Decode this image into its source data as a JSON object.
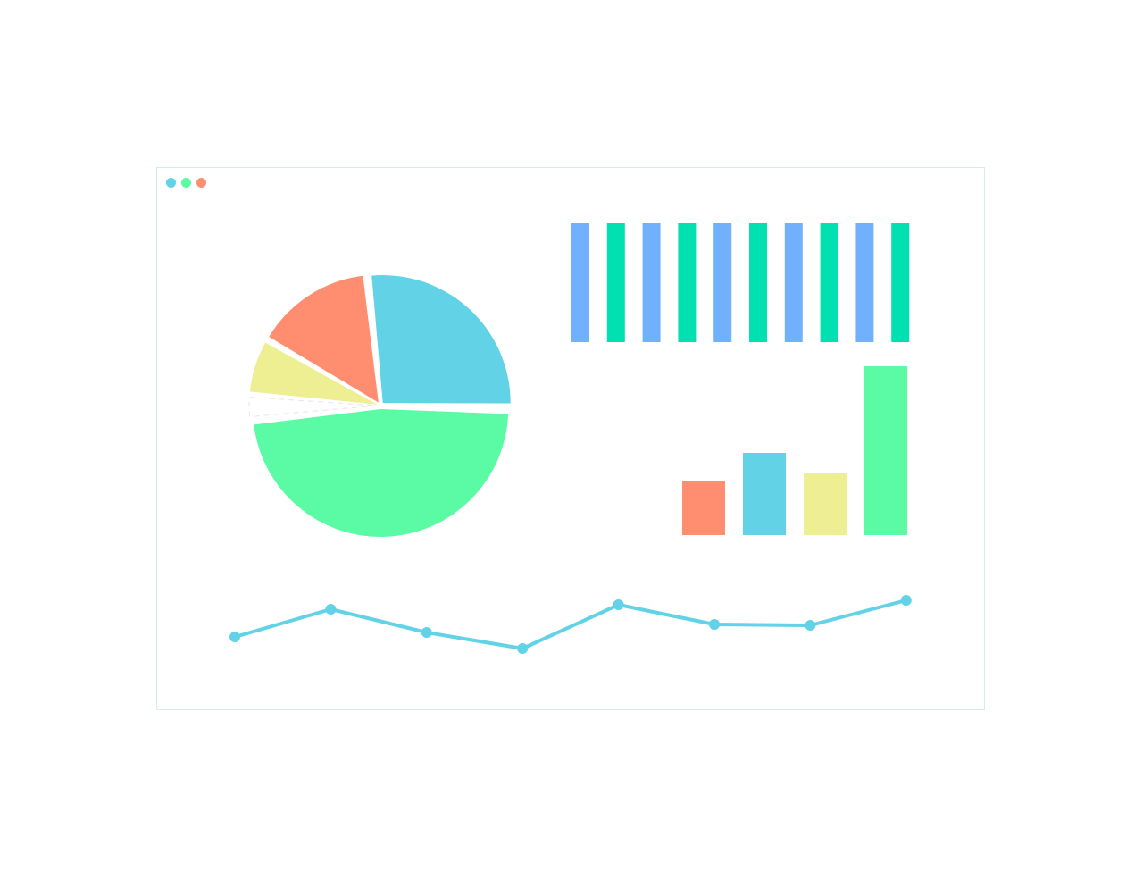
{
  "window": {
    "controls": [
      {
        "name": "window-dot-blue",
        "color": "#62d3e6"
      },
      {
        "name": "window-dot-green",
        "color": "#5afba4"
      },
      {
        "name": "window-dot-orange",
        "color": "#ff8d70"
      }
    ]
  },
  "chart_data": [
    {
      "type": "pie",
      "slices": [
        {
          "value": 27,
          "color": "#62d3e6"
        },
        {
          "value": 48,
          "color": "#5afba4"
        },
        {
          "value": 3,
          "color": "#ffffff"
        },
        {
          "value": 7,
          "color": "#eeee92"
        },
        {
          "value": 15,
          "color": "#ff8d70"
        }
      ]
    },
    {
      "type": "bar",
      "values": [
        1,
        1,
        1,
        1,
        1,
        1,
        1,
        1,
        1,
        1
      ],
      "colors": [
        "#70b0fc",
        "#00e0b0",
        "#70b0fc",
        "#00e0b0",
        "#70b0fc",
        "#00e0b0",
        "#70b0fc",
        "#00e0b0",
        "#70b0fc",
        "#00e0b0"
      ]
    },
    {
      "type": "bar",
      "values": [
        61,
        92,
        70,
        189
      ],
      "colors": [
        "#ff8d70",
        "#62d3e6",
        "#eeee92",
        "#5afba4"
      ]
    },
    {
      "type": "line",
      "values": [
        87,
        118,
        92,
        74,
        123,
        101,
        100,
        128
      ],
      "color": "#62d3e6"
    }
  ]
}
